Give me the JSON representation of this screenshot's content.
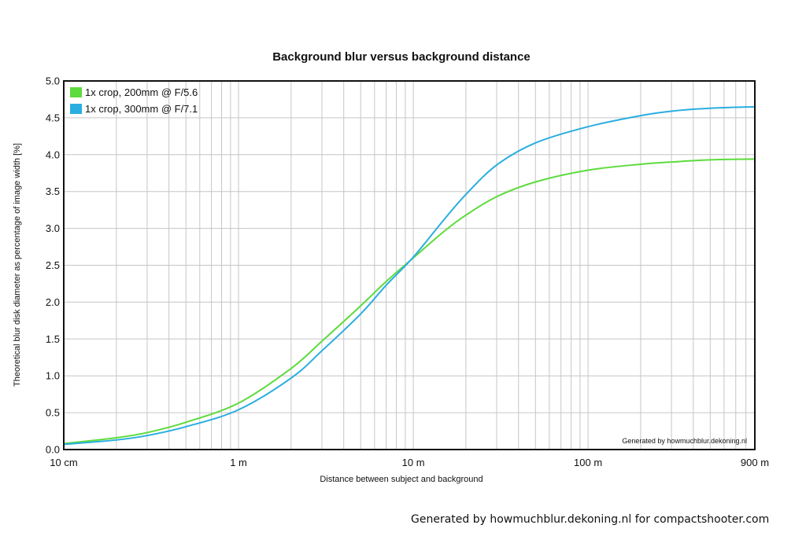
{
  "chart_data": {
    "type": "line",
    "title": "Background blur versus background distance",
    "xlabel": "Distance between subject and background",
    "ylabel": "Theoretical blur disk diameter as percentage of image width [%]",
    "x_scale": "log",
    "xlim": [
      0.1,
      900
    ],
    "ylim": [
      0,
      5
    ],
    "x_tick_labels": [
      "10 cm",
      "1 m",
      "10 m",
      "100 m",
      "900 m"
    ],
    "x_tick_values": [
      0.1,
      1,
      10,
      100,
      900
    ],
    "y_tick_labels": [
      "0.0",
      "0.5",
      "1.0",
      "1.5",
      "2.0",
      "2.5",
      "3.0",
      "3.5",
      "4.0",
      "4.5",
      "5.0"
    ],
    "grid": true,
    "legend_position": "top-left",
    "x": [
      0.1,
      0.2,
      0.3,
      0.5,
      1,
      2,
      3,
      5,
      7,
      10,
      15,
      20,
      30,
      50,
      100,
      200,
      300,
      500,
      900
    ],
    "series": [
      {
        "name": "1x crop, 200mm @ F/5.6",
        "color": "#5ddb3c",
        "values": [
          0.08,
          0.16,
          0.23,
          0.37,
          0.63,
          1.1,
          1.47,
          1.95,
          2.28,
          2.6,
          2.96,
          3.18,
          3.43,
          3.63,
          3.79,
          3.87,
          3.9,
          3.93,
          3.94
        ]
      },
      {
        "name": "1x crop, 300mm @ F/7.1",
        "color": "#2aaee0",
        "values": [
          0.07,
          0.13,
          0.19,
          0.31,
          0.54,
          0.97,
          1.34,
          1.84,
          2.23,
          2.61,
          3.12,
          3.46,
          3.86,
          4.16,
          4.38,
          4.53,
          4.59,
          4.63,
          4.65
        ]
      }
    ],
    "annotation": "Generated by howmuchblur.dekoning.nl"
  },
  "footer": {
    "text": "Generated by howmuchblur.dekoning.nl for compactshooter.com"
  }
}
